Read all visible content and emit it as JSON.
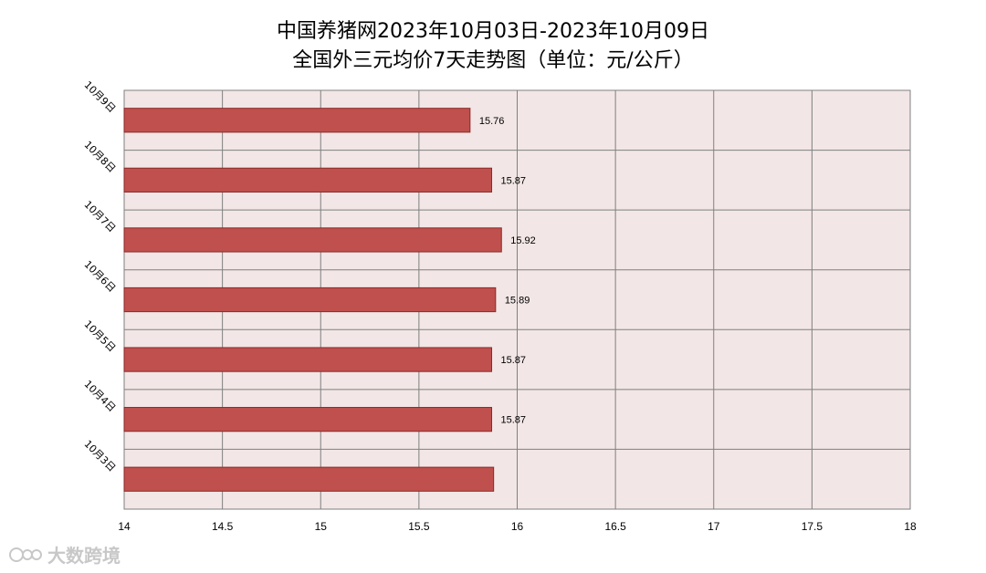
{
  "chart_data": {
    "type": "bar",
    "orientation": "horizontal",
    "title_lines": [
      "中国养猪网2023年10月03日-2023年10月09日",
      "全国外三元均价7天走势图（单位：元/公斤）"
    ],
    "categories": [
      "10月9日",
      "10月8日",
      "10月7日",
      "10月6日",
      "10月5日",
      "10月4日",
      "10月3日"
    ],
    "values": [
      15.76,
      15.87,
      15.92,
      15.89,
      15.87,
      15.87,
      15.88
    ],
    "data_labels": [
      "15.76",
      "15.87",
      "15.92",
      "15.89",
      "15.87",
      "15.87",
      ""
    ],
    "xlim": [
      14,
      18
    ],
    "xticks": [
      "14",
      "14.5",
      "15",
      "15.5",
      "16",
      "16.5",
      "17",
      "17.5",
      "18"
    ],
    "grid": true,
    "colors": {
      "bar": "#c0504d",
      "bar_edge": "#8b2a2a",
      "plot_bg": "#f2e6e6",
      "grid": "#808080"
    }
  },
  "watermark": "大数跨境"
}
